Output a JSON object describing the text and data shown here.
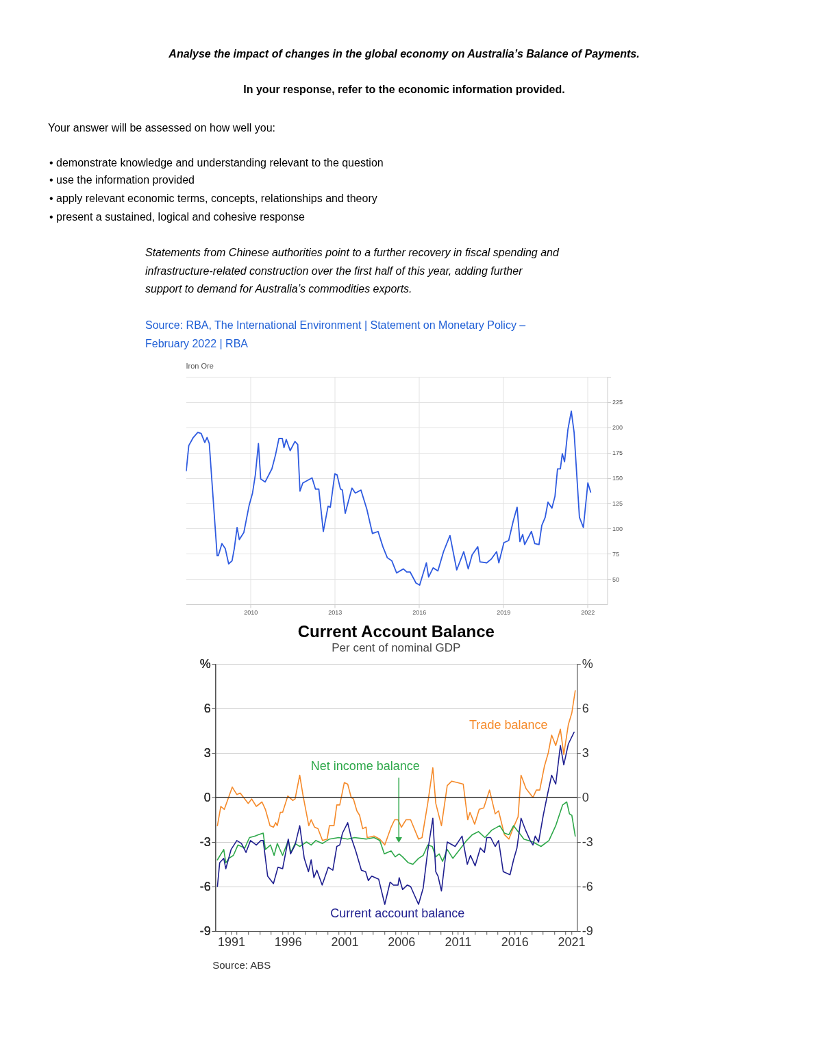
{
  "chart_data": [
    {
      "type": "line",
      "title": "Iron Ore",
      "annotations": [
        "Analyse the impact of changes in the global economy on Australia’s Balance of Payments.",
        "In your response, refer to the economic information provided.",
        "Your answer will be assessed on how well you:",
        "• demonstrate knowledge and understanding relevant to the question",
        "• use the information provided",
        "• apply relevant economic terms, concepts, relationships and theory",
        "• present a sustained, logical and cohesive response",
        "Statements from Chinese authorities point to a further recovery in fiscal spending and",
        "infrastructure-related construction over the first half of this year, adding further",
        "support to demand for Australia’s commodities exports.",
        "Source: RBA, The International Environment | Statement on Monetary Policy –",
        "February 2022 | RBA"
      ],
      "x": [
        2007.71,
        2007.8,
        2007.96,
        2008.12,
        2008.24,
        2008.37,
        2008.45,
        2008.53,
        2008.81,
        2008.85,
        2008.98,
        2009.1,
        2009.22,
        2009.34,
        2009.42,
        2009.52,
        2009.6,
        2009.76,
        2009.95,
        2010.07,
        2010.17,
        2010.28,
        2010.36,
        2010.52,
        2010.76,
        2010.89,
        2011.01,
        2011.13,
        2011.19,
        2011.27,
        2011.41,
        2011.58,
        2011.68,
        2011.76,
        2011.86,
        2012.19,
        2012.31,
        2012.43,
        2012.59,
        2012.76,
        2012.84,
        2013.0,
        2013.08,
        2013.2,
        2013.27,
        2013.37,
        2013.61,
        2013.73,
        2013.93,
        2014.14,
        2014.34,
        2014.54,
        2014.71,
        2014.87,
        2015.03,
        2015.2,
        2015.44,
        2015.56,
        2015.68,
        2015.89,
        2016.02,
        2016.26,
        2016.34,
        2016.5,
        2016.67,
        2016.87,
        2017.1,
        2017.34,
        2017.59,
        2017.75,
        2017.89,
        2018.09,
        2018.17,
        2018.41,
        2018.58,
        2018.76,
        2018.84,
        2019.02,
        2019.19,
        2019.35,
        2019.49,
        2019.59,
        2019.69,
        2019.76,
        2020.0,
        2020.12,
        2020.27,
        2020.37,
        2020.49,
        2020.59,
        2020.73,
        2020.84,
        2020.93,
        2021.03,
        2021.1,
        2021.18,
        2021.3,
        2021.42,
        2021.52,
        2021.71,
        2021.85,
        2022.01,
        2022.11
      ],
      "values": [
        157,
        182,
        190,
        195,
        194,
        185,
        190,
        184,
        73,
        73,
        85,
        80,
        65,
        68,
        80,
        101,
        89,
        96,
        123,
        135,
        153,
        184,
        149,
        146,
        159,
        173,
        189,
        189,
        180,
        188,
        177,
        186,
        183,
        137,
        145,
        150,
        139,
        139,
        97,
        122,
        121,
        154,
        153,
        139,
        138,
        115,
        140,
        135,
        138,
        119,
        95,
        97,
        82,
        71,
        68,
        56,
        60,
        57,
        57,
        46,
        44,
        66,
        52,
        61,
        58,
        77,
        93,
        59,
        77,
        60,
        74,
        82,
        67,
        66,
        70,
        77,
        66,
        86,
        88,
        107,
        121,
        87,
        94,
        84,
        97,
        85,
        84,
        103,
        111,
        126,
        120,
        132,
        159,
        159,
        174,
        166,
        198,
        216,
        195,
        111,
        101,
        145,
        136
      ],
      "color": "#2f5be0",
      "xlim": [
        2007.7,
        2022.7
      ],
      "xticks": [
        2010,
        2013,
        2016,
        2019,
        2022
      ],
      "ylim": [
        25,
        250
      ],
      "yticks": [
        50,
        75,
        100,
        125,
        150,
        175,
        200,
        225,
        {
          "value": 250,
          "label": null
        }
      ],
      "grid": true
    },
    {
      "type": "line",
      "title": "Current Account Balance",
      "subtitle": "Per cent of nominal GDP",
      "annotations": [
        "Source:   ABS"
      ],
      "series": [
        {
          "name": "Trade balance",
          "color": "#f58a2a",
          "x": [
            1989.79,
            1990.09,
            1990.4,
            1991.1,
            1991.5,
            1991.8,
            1992.51,
            1992.81,
            1993.22,
            1993.72,
            1994.02,
            1994.43,
            1994.73,
            1994.93,
            1995.07,
            1995.34,
            1995.54,
            1996.0,
            1996.44,
            1996.64,
            1997.05,
            1997.35,
            1997.85,
            1998.06,
            1998.36,
            1998.66,
            1999.06,
            1999.47,
            1999.67,
            2000.07,
            2000.32,
            2000.58,
            2000.98,
            2001.28,
            2001.59,
            2001.79,
            2002.09,
            2002.33,
            2002.6,
            2002.9,
            2003.0,
            2003.6,
            2004.11,
            2004.55,
            2005.11,
            2005.42,
            2005.72,
            2006.02,
            2006.43,
            2006.83,
            2007.53,
            2007.84,
            2008.34,
            2008.79,
            2009.05,
            2009.55,
            2010.06,
            2010.46,
            2010.96,
            2011.47,
            2011.87,
            2012.07,
            2012.48,
            2012.88,
            2013.28,
            2013.79,
            2014.29,
            2014.59,
            2015.1,
            2015.5,
            2015.91,
            2016.31,
            2016.57,
            2017.01,
            2017.62,
            2017.92,
            2018.22,
            2018.63,
            2018.97,
            2019.27,
            2019.63,
            2020.04,
            2020.34,
            2020.74,
            2021.05,
            2021.35
          ],
          "values": [
            -1.9,
            -0.6,
            -0.8,
            0.7,
            0.2,
            0.3,
            -0.4,
            -0.1,
            -0.6,
            -0.3,
            -0.8,
            -1.9,
            -2.0,
            -1.7,
            -1.9,
            -1.0,
            -1.0,
            0.1,
            -0.2,
            -0.1,
            1.5,
            0.1,
            -1.9,
            -1.5,
            -2.0,
            -2.1,
            -2.9,
            -2.8,
            -1.9,
            -1.9,
            -0.5,
            -0.5,
            1.0,
            0.9,
            0.0,
            -0.1,
            -0.9,
            -1.2,
            -2.1,
            -2.0,
            -2.7,
            -2.6,
            -2.8,
            -3.2,
            -2.0,
            -1.5,
            -1.5,
            -2.0,
            -1.5,
            -1.5,
            -2.8,
            -2.7,
            -0.4,
            2.0,
            -0.4,
            -1.9,
            0.8,
            1.1,
            1.0,
            0.9,
            -1.5,
            -1.0,
            -1.8,
            -0.8,
            -0.7,
            0.5,
            -1.1,
            -0.9,
            -2.5,
            -2.8,
            -2.0,
            -1.3,
            1.5,
            0.6,
            0.0,
            0.5,
            0.5,
            2.1,
            3.0,
            4.2,
            3.5,
            4.6,
            2.9,
            4.9,
            5.7,
            7.2
          ]
        },
        {
          "name": "Net income balance",
          "color": "#2ea84a",
          "x": [
            1989.79,
            1990.35,
            1990.53,
            1990.8,
            1991.2,
            1991.6,
            1992.21,
            1992.62,
            1993.12,
            1993.42,
            1993.83,
            1994.02,
            1994.47,
            1994.79,
            1995.07,
            1995.54,
            1996.04,
            1996.28,
            1996.64,
            1997.05,
            1997.65,
            1998.06,
            1998.46,
            1999.06,
            1999.67,
            2000.48,
            2001.28,
            2001.89,
            2002.9,
            2003.6,
            2004.11,
            2004.51,
            2005.11,
            2005.47,
            2005.82,
            2006.12,
            2006.63,
            2007.03,
            2007.53,
            2007.94,
            2008.34,
            2008.74,
            2009.05,
            2009.35,
            2009.65,
            2010.06,
            2010.56,
            2011.17,
            2011.77,
            2012.28,
            2012.82,
            2013.38,
            2013.99,
            2014.7,
            2015.1,
            2015.5,
            2015.91,
            2016.31,
            2016.82,
            2017.62,
            2018.33,
            2019.03,
            2019.63,
            2020.24,
            2020.6,
            2020.84,
            2021.05,
            2021.35
          ],
          "values": [
            -4.2,
            -3.5,
            -4.4,
            -4.1,
            -3.9,
            -3.2,
            -3.4,
            -2.7,
            -2.6,
            -2.5,
            -2.4,
            -3.5,
            -3.2,
            -3.9,
            -3.1,
            -3.9,
            -2.9,
            -3.7,
            -3.1,
            -3.3,
            -3.0,
            -3.2,
            -2.9,
            -3.1,
            -2.8,
            -2.7,
            -2.8,
            -2.7,
            -2.8,
            -2.7,
            -2.9,
            -3.8,
            -3.6,
            -4.0,
            -3.8,
            -4.0,
            -4.4,
            -4.5,
            -4.1,
            -3.9,
            -3.2,
            -3.3,
            -4.0,
            -3.8,
            -4.3,
            -3.5,
            -4.1,
            -3.5,
            -2.9,
            -2.5,
            -2.3,
            -2.7,
            -2.2,
            -1.9,
            -2.4,
            -2.5,
            -1.9,
            -2.3,
            -2.8,
            -3.0,
            -3.3,
            -2.9,
            -1.9,
            -0.5,
            -0.3,
            -1.1,
            -1.2,
            -2.6
          ]
        },
        {
          "name": "Current account balance",
          "color": "#1f1f8f",
          "x": [
            1989.79,
            1989.99,
            1990.35,
            1990.53,
            1991.0,
            1991.5,
            1991.91,
            1992.31,
            1992.71,
            1993.22,
            1993.62,
            1993.83,
            1994.22,
            1994.73,
            1995.13,
            1995.54,
            1996.04,
            1996.24,
            1996.64,
            1997.05,
            1997.45,
            1997.82,
            1998.06,
            1998.3,
            1998.56,
            1999.03,
            1999.57,
            1999.97,
            2000.32,
            2000.58,
            2000.82,
            2001.28,
            2001.59,
            2001.99,
            2002.49,
            2002.86,
            2003.1,
            2003.4,
            2004.01,
            2004.55,
            2005.02,
            2005.32,
            2005.72,
            2005.82,
            2006.12,
            2006.53,
            2006.83,
            2007.53,
            2007.94,
            2008.34,
            2008.79,
            2009.05,
            2009.25,
            2009.55,
            2010.06,
            2010.76,
            2011.37,
            2011.83,
            2012.11,
            2012.52,
            2012.98,
            2013.34,
            2013.55,
            2013.89,
            2014.29,
            2014.59,
            2015.0,
            2015.6,
            2015.91,
            2016.21,
            2016.57,
            2016.97,
            2017.38,
            2017.62,
            2017.82,
            2018.12,
            2018.53,
            2018.93,
            2019.27,
            2019.63,
            2020.04,
            2020.34,
            2020.74,
            2021.25
          ],
          "values": [
            -6.0,
            -4.4,
            -4.1,
            -4.8,
            -3.5,
            -2.9,
            -3.1,
            -3.7,
            -2.9,
            -3.2,
            -2.9,
            -2.9,
            -5.3,
            -5.8,
            -4.7,
            -4.8,
            -2.8,
            -3.8,
            -3.2,
            -1.9,
            -4.1,
            -5.0,
            -4.2,
            -5.4,
            -4.9,
            -5.9,
            -4.7,
            -4.9,
            -3.3,
            -3.2,
            -2.4,
            -1.7,
            -2.7,
            -3.6,
            -4.9,
            -5.0,
            -5.6,
            -5.3,
            -5.5,
            -7.2,
            -5.7,
            -5.9,
            -5.9,
            -5.4,
            -6.2,
            -5.9,
            -6.0,
            -7.2,
            -6.1,
            -3.6,
            -1.4,
            -5.0,
            -5.3,
            -6.3,
            -3.0,
            -3.3,
            -2.6,
            -4.5,
            -3.9,
            -4.6,
            -3.4,
            -3.7,
            -2.7,
            -2.7,
            -3.3,
            -2.9,
            -5.0,
            -5.2,
            -4.2,
            -3.4,
            -1.4,
            -2.2,
            -2.9,
            -3.2,
            -2.6,
            -3.0,
            -1.2,
            0.3,
            1.5,
            0.9,
            3.5,
            2.2,
            3.6,
            4.4
          ]
        }
      ],
      "xlim": [
        1989.6,
        2021.5
      ],
      "xticks": [
        {
          "value": 1990.5,
          "label": null
        },
        1991,
        {
          "value": 1991.5,
          "label": null
        },
        {
          "value": 1992.5,
          "label": null
        },
        {
          "value": 1993.5,
          "label": null
        },
        {
          "value": 1994.5,
          "label": null
        },
        {
          "value": 1995.5,
          "label": null
        },
        1996,
        {
          "value": 1996.5,
          "label": null
        },
        {
          "value": 1997.5,
          "label": null
        },
        {
          "value": 1998.5,
          "label": null
        },
        {
          "value": 1999.5,
          "label": null
        },
        {
          "value": 2000.5,
          "label": null
        },
        2001,
        {
          "value": 2001.5,
          "label": null
        },
        {
          "value": 2002.5,
          "label": null
        },
        {
          "value": 2003.5,
          "label": null
        },
        {
          "value": 2004.5,
          "label": null
        },
        {
          "value": 2005.5,
          "label": null
        },
        2006,
        {
          "value": 2006.5,
          "label": null
        },
        {
          "value": 2007.5,
          "label": null
        },
        {
          "value": 2008.5,
          "label": null
        },
        {
          "value": 2009.5,
          "label": null
        },
        {
          "value": 2010.5,
          "label": null
        },
        2011,
        {
          "value": 2011.5,
          "label": null
        },
        {
          "value": 2012.5,
          "label": null
        },
        {
          "value": 2013.5,
          "label": null
        },
        {
          "value": 2014.5,
          "label": null
        },
        {
          "value": 2015.5,
          "label": null
        },
        2016,
        {
          "value": 2016.5,
          "label": null
        },
        {
          "value": 2017.5,
          "label": null
        },
        {
          "value": 2018.5,
          "label": null
        },
        {
          "value": 2019.5,
          "label": null
        },
        {
          "value": 2020.5,
          "label": null
        },
        2021
      ],
      "ylim": [
        -9,
        9
      ],
      "yticks": [
        -9,
        -6,
        -3,
        0,
        3,
        6,
        {
          "value": 9,
          "label": "%"
        }
      ],
      "y2lim": [
        -9,
        9
      ],
      "y2ticks": [
        -9,
        -6,
        -3,
        0,
        3,
        6,
        {
          "value": 9,
          "label": "%"
        }
      ],
      "ref_lines": [
        {
          "axis": "y2",
          "value": 0,
          "color": "#333333"
        }
      ],
      "grid": "y"
    }
  ]
}
